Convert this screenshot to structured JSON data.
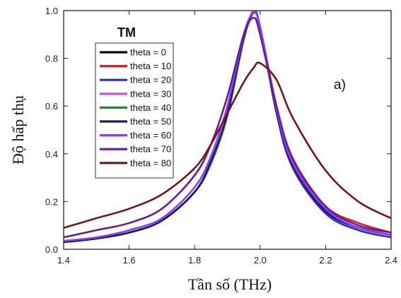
{
  "chart_data": {
    "type": "line",
    "xlabel": "Tần số (THz)",
    "ylabel": "Độ hấp thụ",
    "legend_title": "TM",
    "annotation": "a)",
    "legend_position": "top-left",
    "grid": false,
    "xlim": [
      1.4,
      2.4
    ],
    "ylim": [
      0.0,
      1.0
    ],
    "xticks": [
      "1.4",
      "1.6",
      "1.8",
      "2.0",
      "2.2",
      "2.4"
    ],
    "yticks": [
      "0.0",
      "0.2",
      "0.4",
      "0.6",
      "0.8",
      "1.0"
    ],
    "x": [
      1.4,
      1.5,
      1.6,
      1.7,
      1.8,
      1.85,
      1.9,
      1.95,
      1.98,
      2.0,
      2.05,
      2.1,
      2.2,
      2.3,
      2.4
    ],
    "series": [
      {
        "name": "theta = 0",
        "color": "#000000",
        "values": [
          0.03,
          0.045,
          0.07,
          0.12,
          0.24,
          0.36,
          0.56,
          0.88,
          0.99,
          0.93,
          0.58,
          0.35,
          0.16,
          0.09,
          0.06
        ]
      },
      {
        "name": "theta = 10",
        "color": "#d42020",
        "values": [
          0.03,
          0.045,
          0.07,
          0.12,
          0.24,
          0.36,
          0.56,
          0.88,
          0.99,
          0.93,
          0.6,
          0.37,
          0.18,
          0.11,
          0.07
        ]
      },
      {
        "name": "theta = 20",
        "color": "#2a2ad8",
        "values": [
          0.03,
          0.045,
          0.07,
          0.12,
          0.24,
          0.36,
          0.56,
          0.88,
          1.0,
          0.93,
          0.57,
          0.34,
          0.15,
          0.08,
          0.05
        ]
      },
      {
        "name": "theta = 30",
        "color": "#e040e8",
        "values": [
          0.03,
          0.045,
          0.07,
          0.12,
          0.24,
          0.36,
          0.56,
          0.88,
          1.0,
          0.93,
          0.58,
          0.35,
          0.16,
          0.09,
          0.06
        ]
      },
      {
        "name": "theta = 40",
        "color": "#1f8a2e",
        "values": [
          0.03,
          0.045,
          0.07,
          0.12,
          0.24,
          0.36,
          0.56,
          0.88,
          0.99,
          0.93,
          0.58,
          0.35,
          0.16,
          0.09,
          0.06
        ]
      },
      {
        "name": "theta = 50",
        "color": "#1a1a6e",
        "values": [
          0.03,
          0.045,
          0.07,
          0.12,
          0.24,
          0.37,
          0.57,
          0.89,
          0.99,
          0.93,
          0.58,
          0.35,
          0.16,
          0.09,
          0.06
        ]
      },
      {
        "name": "theta = 60",
        "color": "#8a3ff0",
        "values": [
          0.035,
          0.05,
          0.08,
          0.13,
          0.26,
          0.39,
          0.6,
          0.9,
          0.99,
          0.93,
          0.59,
          0.36,
          0.17,
          0.09,
          0.06
        ]
      },
      {
        "name": "theta = 70",
        "color": "#6a1aa0",
        "values": [
          0.05,
          0.08,
          0.11,
          0.17,
          0.31,
          0.44,
          0.64,
          0.9,
          0.97,
          0.9,
          0.6,
          0.38,
          0.18,
          0.1,
          0.07
        ]
      },
      {
        "name": "theta = 80",
        "color": "#7a1414",
        "values": [
          0.09,
          0.13,
          0.17,
          0.23,
          0.34,
          0.44,
          0.57,
          0.7,
          0.76,
          0.78,
          0.71,
          0.55,
          0.33,
          0.2,
          0.13
        ]
      }
    ]
  }
}
